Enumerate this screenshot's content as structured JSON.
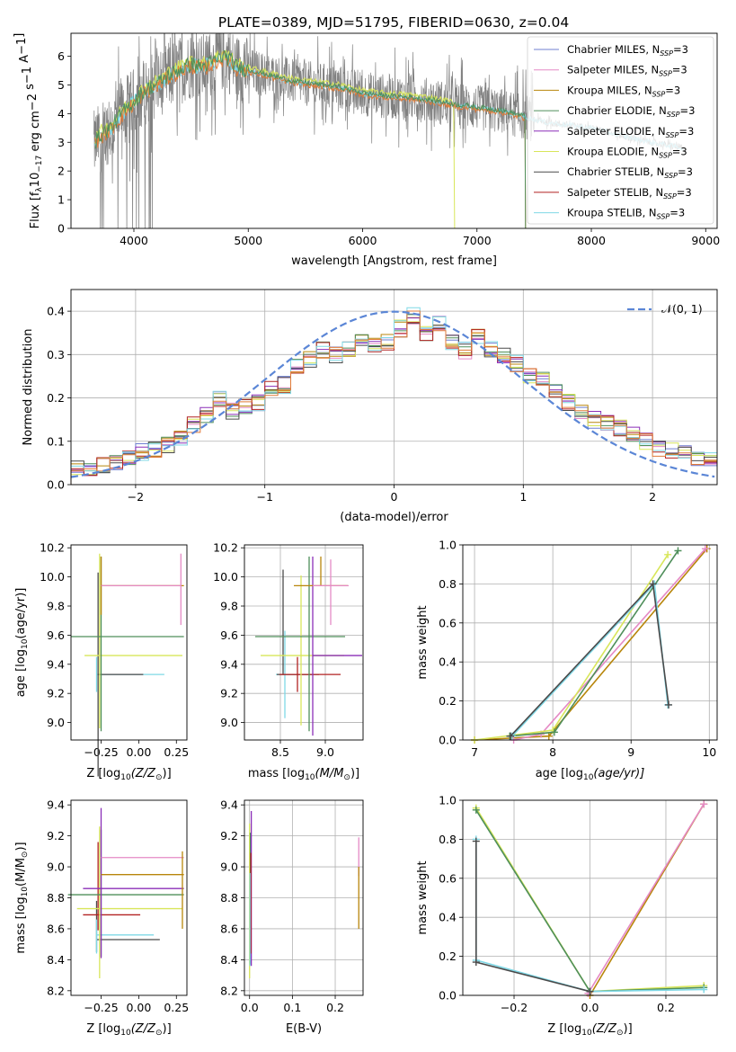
{
  "figure": {
    "title": "PLATE=0389, MJD=51795, FIBERID=0630, z=0.04",
    "colors": {
      "Chabrier MILES": "#6f7fd1",
      "Salpeter MILES": "#e58ac5",
      "Kroupa MILES": "#b8860b",
      "Chabrier ELODIE": "#4f8f5a",
      "Salpeter ELODIE": "#8b2fb8",
      "Kroupa ELODIE": "#d8e65a",
      "Chabrier STELIB": "#4a4a4a",
      "Salpeter STELIB": "#b22222",
      "Kroupa STELIB": "#7fd8e6",
      "data": "#808080",
      "accent_orange": "#e07b39",
      "normal": "#5b86d6"
    }
  },
  "chart_data": [
    {
      "id": "spectrum",
      "type": "line",
      "xlabel": "wavelength [Angstrom, rest frame]",
      "ylabel_parts": [
        "Flux [f",
        "λ",
        "10",
        "−17",
        " erg cm",
        "−2",
        " s",
        "−1",
        " A",
        "−1",
        "]"
      ],
      "xlim": [
        3450,
        9100
      ],
      "ylim": [
        0,
        6.8
      ],
      "xticks": [
        4000,
        5000,
        6000,
        7000,
        8000,
        9000
      ],
      "yticks": [
        0,
        1,
        2,
        3,
        4,
        5,
        6
      ],
      "grid": false,
      "legend_position": "top-right",
      "legend": [
        {
          "name": "Chabrier MILES",
          "sub": "SSP",
          "suffix": "=3"
        },
        {
          "name": "Salpeter MILES",
          "sub": "SSP",
          "suffix": "=3"
        },
        {
          "name": "Kroupa MILES",
          "sub": "SSP",
          "suffix": "=3"
        },
        {
          "name": "Chabrier ELODIE",
          "sub": "SSP",
          "suffix": "=3"
        },
        {
          "name": "Salpeter ELODIE",
          "sub": "SSP",
          "suffix": "=3"
        },
        {
          "name": "Kroupa ELODIE",
          "sub": "SSP",
          "suffix": "=3"
        },
        {
          "name": "Chabrier STELIB",
          "sub": "SSP",
          "suffix": "=3"
        },
        {
          "name": "Salpeter STELIB",
          "sub": "SSP",
          "suffix": "=3"
        },
        {
          "name": "Kroupa STELIB",
          "sub": "SSP",
          "suffix": "=3"
        }
      ],
      "model_envelope": {
        "x": [
          3650,
          3700,
          3800,
          3900,
          4000,
          4100,
          4200,
          4300,
          4400,
          4500,
          4600,
          4700,
          4800,
          4900,
          5000,
          5200,
          5400,
          5600,
          5800,
          6000,
          6200,
          6400,
          6600,
          6800,
          7000,
          7200,
          7400,
          7600,
          7800,
          8000,
          8200,
          8400,
          8600,
          8800
        ],
        "y": [
          2.9,
          3.2,
          3.5,
          4.0,
          4.4,
          4.8,
          5.0,
          5.3,
          5.5,
          5.7,
          5.6,
          5.8,
          6.0,
          5.6,
          5.5,
          5.3,
          5.1,
          5.0,
          4.9,
          4.7,
          4.6,
          4.55,
          4.45,
          4.3,
          4.2,
          4.1,
          3.9,
          3.7,
          3.6,
          3.5,
          3.3,
          3.1,
          2.95,
          2.8
        ]
      },
      "data_range": [
        3650,
        8800
      ]
    },
    {
      "id": "residuals",
      "type": "line",
      "xlabel": "(data-model)/error",
      "ylabel": "Normed distribution",
      "xlim": [
        -2.5,
        2.5
      ],
      "ylim": [
        0,
        0.45
      ],
      "xticks": [
        -2,
        -1,
        0,
        1,
        2
      ],
      "xtick_labels": [
        "−2",
        "−1",
        "0",
        "1",
        "2"
      ],
      "yticks": [
        0,
        0.1,
        0.2,
        0.3,
        0.4
      ],
      "ytick_labels": [
        "0.0",
        "0.1",
        "0.2",
        "0.3",
        "0.4"
      ],
      "grid": true,
      "legend_position": "top-right",
      "normal_label": "𝒩(0, 1)",
      "hist_bins": [
        -2.5,
        2.5,
        50
      ],
      "hist_base": [
        0.035,
        0.04,
        0.045,
        0.05,
        0.06,
        0.075,
        0.08,
        0.09,
        0.11,
        0.14,
        0.16,
        0.2,
        0.17,
        0.18,
        0.19,
        0.22,
        0.23,
        0.27,
        0.29,
        0.31,
        0.3,
        0.31,
        0.33,
        0.32,
        0.33,
        0.36,
        0.39,
        0.35,
        0.37,
        0.33,
        0.31,
        0.34,
        0.31,
        0.3,
        0.28,
        0.25,
        0.24,
        0.22,
        0.19,
        0.17,
        0.15,
        0.14,
        0.13,
        0.12,
        0.1,
        0.085,
        0.08,
        0.07,
        0.06,
        0.055
      ]
    },
    {
      "id": "age-vs-Z",
      "type": "scatter",
      "xlabel_parts": [
        "Z [log",
        "10",
        "(Z/Z",
        "⊙",
        ")]"
      ],
      "ylabel_parts": [
        "age  [log",
        "10",
        "(age/yr)]"
      ],
      "xlim": [
        -0.45,
        0.32
      ],
      "ylim": [
        8.88,
        10.22
      ],
      "xticks": [
        -0.25,
        0.0,
        0.25
      ],
      "xtick_labels": [
        "−0.25",
        "0.00",
        "0.25"
      ],
      "yticks": [
        9.0,
        9.2,
        9.4,
        9.6,
        9.8,
        10.0,
        10.2
      ],
      "ytick_labels": [
        "9.0",
        "9.2",
        "9.4",
        "9.6",
        "9.8",
        "10.0",
        "10.2"
      ],
      "grid": false,
      "points": [
        {
          "series": "Kroupa STELIB",
          "x": -0.28,
          "y": 9.33,
          "xerr": [
            0.0,
            0.45
          ],
          "yerr": [
            0.12,
            0.12
          ]
        },
        {
          "series": "Chabrier STELIB",
          "x": -0.27,
          "y": 9.33,
          "xerr": [
            0.0,
            0.3
          ],
          "yerr": [
            0.7,
            0.7
          ]
        },
        {
          "series": "Kroupa ELODIE",
          "x": -0.26,
          "y": 9.46,
          "xerr": [
            0.1,
            0.55
          ],
          "yerr": [
            0.5,
            0.7
          ]
        },
        {
          "series": "Chabrier ELODIE",
          "x": -0.25,
          "y": 9.59,
          "xerr": [
            0.2,
            0.55
          ],
          "yerr": [
            0.65,
            0.55
          ]
        },
        {
          "series": "Kroupa MILES",
          "x": -0.25,
          "y": 9.94,
          "xerr": [
            0.0,
            0.55
          ],
          "yerr": [
            0.2,
            0.2
          ]
        },
        {
          "series": "Salpeter MILES",
          "x": 0.28,
          "y": 9.94,
          "xerr": [
            0.53,
            0.0
          ],
          "yerr": [
            0.27,
            0.22
          ]
        }
      ]
    },
    {
      "id": "age-vs-mass",
      "type": "scatter",
      "xlabel_parts": [
        "mass [log",
        "10",
        "(M/M",
        "⊙",
        ")]"
      ],
      "ylabel_parts": [],
      "xlim": [
        8.1,
        9.42
      ],
      "ylim": [
        8.88,
        10.22
      ],
      "xticks": [
        8.5,
        9.0
      ],
      "xtick_labels": [
        "8.5",
        "9.0"
      ],
      "yticks": [
        9.0,
        9.2,
        9.4,
        9.6,
        9.8,
        10.0,
        10.2
      ],
      "ytick_labels": [
        "9.0",
        "9.2",
        "9.4",
        "9.6",
        "9.8",
        "10.0",
        "10.2"
      ],
      "grid": true,
      "points": [
        {
          "series": "Kroupa STELIB",
          "x": 8.55,
          "y": 9.33,
          "xerr": [
            0.1,
            0.3
          ],
          "yerr": [
            0.3,
            0.3
          ]
        },
        {
          "series": "Chabrier STELIB",
          "x": 8.53,
          "y": 9.33,
          "xerr": [
            0.07,
            0.4
          ],
          "yerr": [
            0.0,
            0.72
          ]
        },
        {
          "series": "Salpeter STELIB",
          "x": 8.69,
          "y": 9.33,
          "xerr": [
            0.2,
            0.48
          ],
          "yerr": [
            0.12,
            0.12
          ]
        },
        {
          "series": "Kroupa ELODIE",
          "x": 8.73,
          "y": 9.46,
          "xerr": [
            0.45,
            0.48
          ],
          "yerr": [
            0.48,
            0.55
          ]
        },
        {
          "series": "Chabrier ELODIE",
          "x": 8.82,
          "y": 9.59,
          "xerr": [
            0.6,
            0.4
          ],
          "yerr": [
            0.65,
            0.55
          ]
        },
        {
          "series": "Salpeter ELODIE",
          "x": 8.86,
          "y": 9.46,
          "xerr": [
            0.0,
            0.55
          ],
          "yerr": [
            0.55,
            0.68
          ]
        },
        {
          "series": "Kroupa MILES",
          "x": 8.95,
          "y": 9.94,
          "xerr": [
            0.3,
            0.3
          ],
          "yerr": [
            0.0,
            0.2
          ]
        },
        {
          "series": "Salpeter MILES",
          "x": 9.06,
          "y": 9.94,
          "xerr": [
            0.2,
            0.2
          ],
          "yerr": [
            0.27,
            0.18
          ]
        }
      ]
    },
    {
      "id": "massweight-vs-age",
      "type": "line",
      "xlabel_parts": [
        "age  [log",
        "10",
        "(age/yr)]"
      ],
      "ylabel": "mass weight",
      "xlim": [
        6.85,
        10.1
      ],
      "ylim": [
        0,
        1.0
      ],
      "xticks": [
        7,
        8,
        9,
        10
      ],
      "xtick_labels": [
        "7",
        "8",
        "9",
        "10"
      ],
      "yticks": [
        0,
        0.2,
        0.4,
        0.6,
        0.8,
        1.0
      ],
      "ytick_labels": [
        "0.0",
        "0.2",
        "0.4",
        "0.6",
        "0.8",
        "1.0"
      ],
      "grid": true,
      "series": [
        {
          "name": "Kroupa MILES",
          "x": [
            7.0,
            7.95,
            9.97
          ],
          "y": [
            0.0,
            0.02,
            0.98
          ]
        },
        {
          "name": "Salpeter MILES",
          "x": [
            7.5,
            7.85,
            9.95
          ],
          "y": [
            0.0,
            0.03,
            0.98
          ]
        },
        {
          "name": "Kroupa ELODIE",
          "x": [
            7.0,
            8.0,
            9.47
          ],
          "y": [
            0.0,
            0.05,
            0.95
          ]
        },
        {
          "name": "Chabrier ELODIE",
          "x": [
            7.45,
            8.02,
            9.6
          ],
          "y": [
            0.02,
            0.04,
            0.97
          ]
        },
        {
          "name": "Kroupa STELIB",
          "x": [
            7.48,
            9.3,
            9.47
          ],
          "y": [
            0.02,
            0.8,
            0.18
          ]
        },
        {
          "name": "Chabrier STELIB",
          "x": [
            7.46,
            9.28,
            9.48
          ],
          "y": [
            0.02,
            0.8,
            0.18
          ]
        }
      ]
    },
    {
      "id": "mass-vs-Z",
      "type": "scatter",
      "xlabel_parts": [
        "Z [log",
        "10",
        "(Z/Z",
        "⊙",
        ")]"
      ],
      "ylabel_parts": [
        "mass [log",
        "10",
        "(M/M",
        "⊙",
        ")]"
      ],
      "xlim": [
        -0.45,
        0.32
      ],
      "ylim": [
        8.17,
        9.43
      ],
      "xticks": [
        -0.25,
        0.0,
        0.25
      ],
      "xtick_labels": [
        "−0.25",
        "0.00",
        "0.25"
      ],
      "yticks": [
        8.2,
        8.4,
        8.6,
        8.8,
        9.0,
        9.2,
        9.4
      ],
      "ytick_labels": [
        "8.2",
        "8.4",
        "8.6",
        "8.8",
        "9.0",
        "9.2",
        "9.4"
      ],
      "grid": false,
      "points": [
        {
          "series": "Chabrier STELIB",
          "x": -0.28,
          "y": 8.53,
          "xerr": [
            0.0,
            0.42
          ],
          "yerr": [
            0.08,
            0.25
          ]
        },
        {
          "series": "Kroupa STELIB",
          "x": -0.28,
          "y": 8.56,
          "xerr": [
            0.0,
            0.38
          ],
          "yerr": [
            0.12,
            0.1
          ]
        },
        {
          "series": "Salpeter STELIB",
          "x": -0.27,
          "y": 8.69,
          "xerr": [
            0.1,
            0.28
          ],
          "yerr": [
            0.1,
            0.47
          ]
        },
        {
          "series": "Kroupa ELODIE",
          "x": -0.26,
          "y": 8.73,
          "xerr": [
            0.15,
            0.55
          ],
          "yerr": [
            0.45,
            0.53
          ]
        },
        {
          "series": "Chabrier ELODIE",
          "x": -0.25,
          "y": 8.82,
          "xerr": [
            0.22,
            0.55
          ],
          "yerr": [
            0.4,
            0.42
          ]
        },
        {
          "series": "Salpeter ELODIE",
          "x": -0.25,
          "y": 8.86,
          "xerr": [
            0.12,
            0.55
          ],
          "yerr": [
            0.45,
            0.52
          ]
        },
        {
          "series": "Kroupa MILES",
          "x": -0.25,
          "y": 8.95,
          "xerr": [
            0.0,
            0.55
          ],
          "yerr": [
            0.0,
            0.0
          ]
        },
        {
          "series": "Salpeter MILES",
          "x": -0.25,
          "y": 9.06,
          "xerr": [
            0.0,
            0.55
          ],
          "yerr": [
            0.0,
            0.0
          ]
        },
        {
          "series": "Kroupa MILES",
          "x": 0.29,
          "y": 8.95,
          "xerr": [
            0.0,
            0.0
          ],
          "yerr": [
            0.35,
            0.15
          ]
        }
      ]
    },
    {
      "id": "mass-vs-ebv",
      "type": "scatter",
      "xlabel": "E(B-V)",
      "ylabel_parts": [],
      "xlim": [
        -0.012,
        0.265
      ],
      "ylim": [
        8.17,
        9.43
      ],
      "xticks": [
        0.0,
        0.1,
        0.2
      ],
      "xtick_labels": [
        "0.0",
        "0.1",
        "0.2"
      ],
      "yticks": [
        8.2,
        8.4,
        8.6,
        8.8,
        9.0,
        9.2,
        9.4
      ],
      "ytick_labels": [
        "8.2",
        "8.4",
        "8.6",
        "8.8",
        "9.0",
        "9.2",
        "9.4"
      ],
      "grid": true,
      "points": [
        {
          "series": "Kroupa ELODIE",
          "x": 0.0,
          "y": 8.73,
          "xerr": [
            0,
            0
          ],
          "yerr": [
            0.45,
            0.55
          ]
        },
        {
          "series": "Chabrier ELODIE",
          "x": 0.002,
          "y": 8.82,
          "xerr": [
            0,
            0
          ],
          "yerr": [
            0.45,
            0.4
          ]
        },
        {
          "series": "Salpeter ELODIE",
          "x": 0.004,
          "y": 8.86,
          "xerr": [
            0,
            0
          ],
          "yerr": [
            0.5,
            0.5
          ]
        },
        {
          "series": "Salpeter STELIB",
          "x": 0.003,
          "y": 8.69,
          "xerr": [
            0,
            0
          ],
          "yerr": [
            0.25,
            0.4
          ]
        },
        {
          "series": "Kroupa STELIB",
          "x": 0.001,
          "y": 8.56,
          "xerr": [
            0,
            0
          ],
          "yerr": [
            0.2,
            0.4
          ]
        },
        {
          "series": "Salpeter MILES",
          "x": 0.255,
          "y": 9.06,
          "xerr": [
            0,
            0
          ],
          "yerr": [
            0.12,
            0.13
          ]
        },
        {
          "series": "Kroupa MILES",
          "x": 0.255,
          "y": 8.95,
          "xerr": [
            0,
            0
          ],
          "yerr": [
            0.35,
            0.05
          ]
        }
      ]
    },
    {
      "id": "massweight-vs-Z",
      "type": "line",
      "xlabel_parts": [
        "Z [log",
        "10",
        "(Z/Z",
        "⊙",
        ")]"
      ],
      "ylabel": "mass weight",
      "xlim": [
        -0.335,
        0.335
      ],
      "ylim": [
        0,
        1.0
      ],
      "xticks": [
        -0.2,
        0.0,
        0.2
      ],
      "xtick_labels": [
        "−0.2",
        "0.0",
        "0.2"
      ],
      "yticks": [
        0,
        0.2,
        0.4,
        0.6,
        0.8,
        1.0
      ],
      "ytick_labels": [
        "0.0",
        "0.2",
        "0.4",
        "0.6",
        "0.8",
        "1.0"
      ],
      "grid": true,
      "series": [
        {
          "name": "Kroupa MILES",
          "x": [
            0.0,
            0.3
          ],
          "y": [
            0.0,
            0.98
          ]
        },
        {
          "name": "Salpeter MILES",
          "x": [
            -0.005,
            0.3
          ],
          "y": [
            0.01,
            0.98
          ]
        },
        {
          "name": "Kroupa ELODIE",
          "x": [
            -0.3,
            0.0,
            0.3
          ],
          "y": [
            0.96,
            0.02,
            0.05
          ]
        },
        {
          "name": "Chabrier ELODIE",
          "x": [
            -0.3,
            0.0,
            0.3
          ],
          "y": [
            0.95,
            0.02,
            0.04
          ]
        },
        {
          "name": "Kroupa STELIB",
          "x": [
            -0.3,
            -0.3,
            0.0,
            0.3
          ],
          "y": [
            0.8,
            0.18,
            0.02,
            0.03
          ]
        },
        {
          "name": "Chabrier STELIB",
          "x": [
            -0.3,
            -0.3,
            0.0
          ],
          "y": [
            0.79,
            0.17,
            0.02
          ]
        }
      ]
    }
  ]
}
